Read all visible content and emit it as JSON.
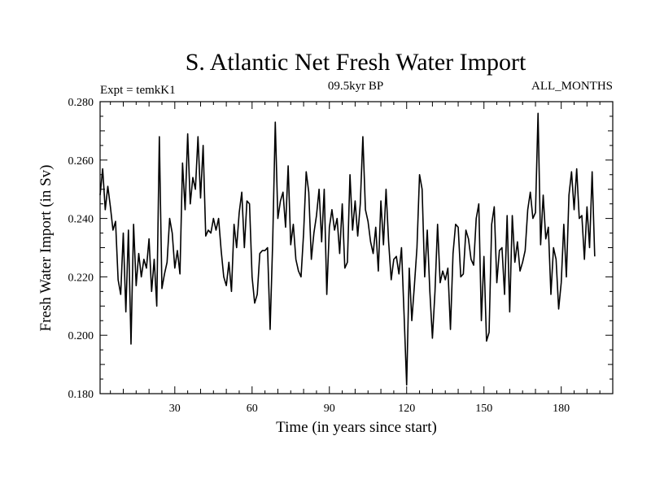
{
  "chart_data": {
    "type": "line",
    "title": "S. Atlantic Net Fresh Water Import",
    "subtitle": "09.5kyr BP",
    "left_annotation": "Expt = temkK1",
    "right_annotation": "ALL_MONTHS",
    "xlabel": "Time (in years since start)",
    "ylabel": "Fresh Water Import (in Sv)",
    "xlim": [
      1,
      200
    ],
    "ylim": [
      0.18,
      0.28
    ],
    "grid": false,
    "x_ticks": [
      30,
      60,
      90,
      120,
      150,
      180
    ],
    "x_tick_labels": [
      "30",
      "60",
      "90",
      "120",
      "150",
      "180"
    ],
    "y_ticks": [
      0.18,
      0.2,
      0.22,
      0.24,
      0.26,
      0.28
    ],
    "y_tick_labels": [
      "0.180",
      "0.200",
      "0.220",
      "0.240",
      "0.260",
      "0.280"
    ],
    "series": [
      {
        "name": "Net Fresh Water Import",
        "x_start": 1,
        "x_step": 1,
        "values": [
          0.248,
          0.257,
          0.243,
          0.251,
          0.244,
          0.236,
          0.239,
          0.219,
          0.214,
          0.235,
          0.208,
          0.236,
          0.197,
          0.238,
          0.217,
          0.228,
          0.22,
          0.226,
          0.223,
          0.233,
          0.215,
          0.226,
          0.21,
          0.268,
          0.216,
          0.221,
          0.225,
          0.24,
          0.235,
          0.223,
          0.229,
          0.221,
          0.259,
          0.243,
          0.269,
          0.245,
          0.254,
          0.25,
          0.268,
          0.247,
          0.265,
          0.234,
          0.236,
          0.235,
          0.24,
          0.236,
          0.24,
          0.229,
          0.22,
          0.217,
          0.225,
          0.215,
          0.238,
          0.23,
          0.242,
          0.249,
          0.23,
          0.246,
          0.245,
          0.22,
          0.211,
          0.214,
          0.228,
          0.229,
          0.229,
          0.23,
          0.202,
          0.232,
          0.273,
          0.24,
          0.246,
          0.249,
          0.237,
          0.258,
          0.231,
          0.238,
          0.226,
          0.222,
          0.22,
          0.235,
          0.256,
          0.249,
          0.226,
          0.235,
          0.241,
          0.25,
          0.232,
          0.25,
          0.214,
          0.237,
          0.243,
          0.236,
          0.24,
          0.228,
          0.245,
          0.223,
          0.225,
          0.255,
          0.236,
          0.246,
          0.234,
          0.245,
          0.268,
          0.243,
          0.239,
          0.232,
          0.228,
          0.237,
          0.222,
          0.246,
          0.231,
          0.25,
          0.232,
          0.219,
          0.226,
          0.227,
          0.221,
          0.23,
          0.207,
          0.183,
          0.223,
          0.205,
          0.217,
          0.23,
          0.255,
          0.25,
          0.22,
          0.236,
          0.215,
          0.199,
          0.215,
          0.238,
          0.218,
          0.222,
          0.219,
          0.223,
          0.202,
          0.228,
          0.238,
          0.237,
          0.22,
          0.221,
          0.236,
          0.233,
          0.226,
          0.224,
          0.24,
          0.245,
          0.205,
          0.227,
          0.198,
          0.201,
          0.238,
          0.244,
          0.218,
          0.229,
          0.23,
          0.214,
          0.241,
          0.208,
          0.241,
          0.225,
          0.232,
          0.222,
          0.225,
          0.229,
          0.243,
          0.249,
          0.24,
          0.242,
          0.276,
          0.231,
          0.248,
          0.233,
          0.237,
          0.214,
          0.23,
          0.226,
          0.209,
          0.218,
          0.238,
          0.22,
          0.248,
          0.256,
          0.243,
          0.257,
          0.24,
          0.241,
          0.226,
          0.244,
          0.23,
          0.256,
          0.227
        ]
      }
    ]
  }
}
